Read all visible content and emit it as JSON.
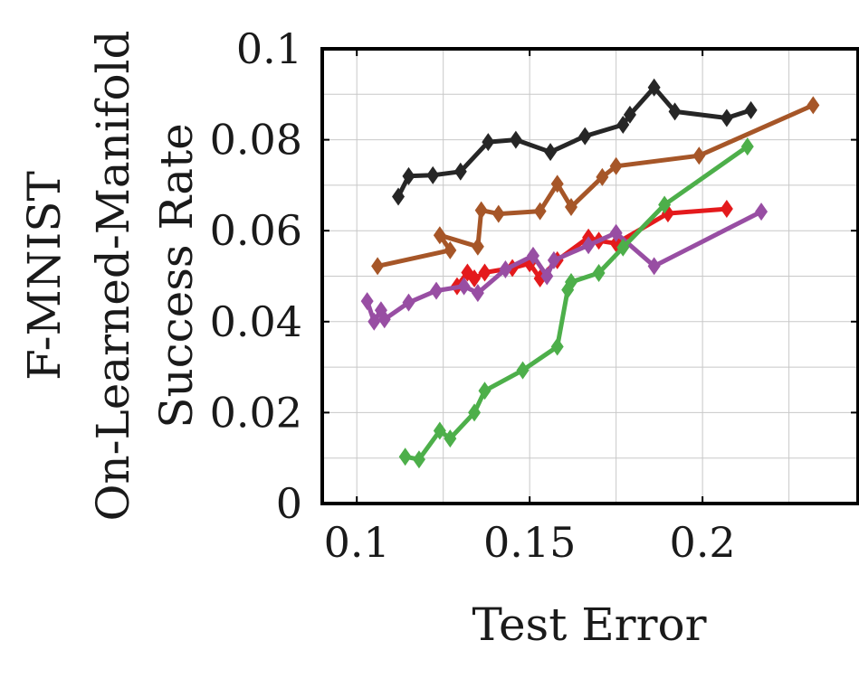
{
  "row_title_1": "F-MNIST",
  "row_title_2": "On-Learned-Manifold",
  "chart_data": {
    "type": "line",
    "title": "",
    "xlabel": "Test Error",
    "ylabel": "Success Rate",
    "xlim": [
      0.09,
      0.245
    ],
    "ylim": [
      0,
      0.1
    ],
    "xticks": [
      0.1,
      0.15,
      0.2
    ],
    "xtick_labels": [
      "0.1",
      "0.15",
      "0.2"
    ],
    "yticks": [
      0,
      0.02,
      0.04,
      0.06,
      0.08,
      0.1
    ],
    "ytick_labels": [
      "0",
      "0.02",
      "0.04",
      "0.06",
      "0.08",
      "0.1"
    ],
    "grid": true,
    "marker": "diamond",
    "series": [
      {
        "color": "#262626",
        "points": [
          [
            0.112,
            0.0675
          ],
          [
            0.115,
            0.072
          ],
          [
            0.122,
            0.0722
          ],
          [
            0.13,
            0.073
          ],
          [
            0.138,
            0.0795
          ],
          [
            0.146,
            0.08
          ],
          [
            0.156,
            0.0773
          ],
          [
            0.166,
            0.0808
          ],
          [
            0.177,
            0.0833
          ],
          [
            0.179,
            0.0855
          ],
          [
            0.186,
            0.0915
          ],
          [
            0.192,
            0.0862
          ],
          [
            0.207,
            0.0848
          ],
          [
            0.214,
            0.0865
          ]
        ]
      },
      {
        "color": "#a65628",
        "points": [
          [
            0.106,
            0.0522
          ],
          [
            0.127,
            0.0557
          ],
          [
            0.124,
            0.059
          ],
          [
            0.135,
            0.0565
          ],
          [
            0.136,
            0.0645
          ],
          [
            0.141,
            0.0637
          ],
          [
            0.153,
            0.0643
          ],
          [
            0.158,
            0.0703
          ],
          [
            0.162,
            0.0652
          ],
          [
            0.171,
            0.0718
          ],
          [
            0.175,
            0.0742
          ],
          [
            0.199,
            0.0765
          ],
          [
            0.232,
            0.0876
          ]
        ]
      },
      {
        "color": "#e41a1c",
        "points": [
          [
            0.129,
            0.0478
          ],
          [
            0.132,
            0.0508
          ],
          [
            0.134,
            0.0495
          ],
          [
            0.137,
            0.0508
          ],
          [
            0.145,
            0.0518
          ],
          [
            0.15,
            0.0528
          ],
          [
            0.153,
            0.0495
          ],
          [
            0.158,
            0.0535
          ],
          [
            0.167,
            0.0585
          ],
          [
            0.17,
            0.0578
          ],
          [
            0.175,
            0.0572
          ],
          [
            0.19,
            0.0638
          ],
          [
            0.207,
            0.0648
          ]
        ]
      },
      {
        "color": "#984ea3",
        "points": [
          [
            0.103,
            0.0445
          ],
          [
            0.105,
            0.04
          ],
          [
            0.107,
            0.0425
          ],
          [
            0.108,
            0.0405
          ],
          [
            0.115,
            0.0442
          ],
          [
            0.123,
            0.0468
          ],
          [
            0.131,
            0.0478
          ],
          [
            0.135,
            0.0463
          ],
          [
            0.143,
            0.0515
          ],
          [
            0.151,
            0.0545
          ],
          [
            0.155,
            0.05
          ],
          [
            0.157,
            0.0535
          ],
          [
            0.167,
            0.0568
          ],
          [
            0.175,
            0.0595
          ],
          [
            0.186,
            0.0522
          ],
          [
            0.217,
            0.0642
          ]
        ]
      },
      {
        "color": "#4daf4a",
        "points": [
          [
            0.114,
            0.0103
          ],
          [
            0.118,
            0.0097
          ],
          [
            0.124,
            0.016
          ],
          [
            0.127,
            0.0143
          ],
          [
            0.134,
            0.02
          ],
          [
            0.137,
            0.0248
          ],
          [
            0.148,
            0.0293
          ],
          [
            0.158,
            0.0345
          ],
          [
            0.161,
            0.047
          ],
          [
            0.162,
            0.0487
          ],
          [
            0.17,
            0.0507
          ],
          [
            0.177,
            0.0563
          ],
          [
            0.189,
            0.0657
          ],
          [
            0.213,
            0.0785
          ]
        ]
      }
    ]
  }
}
